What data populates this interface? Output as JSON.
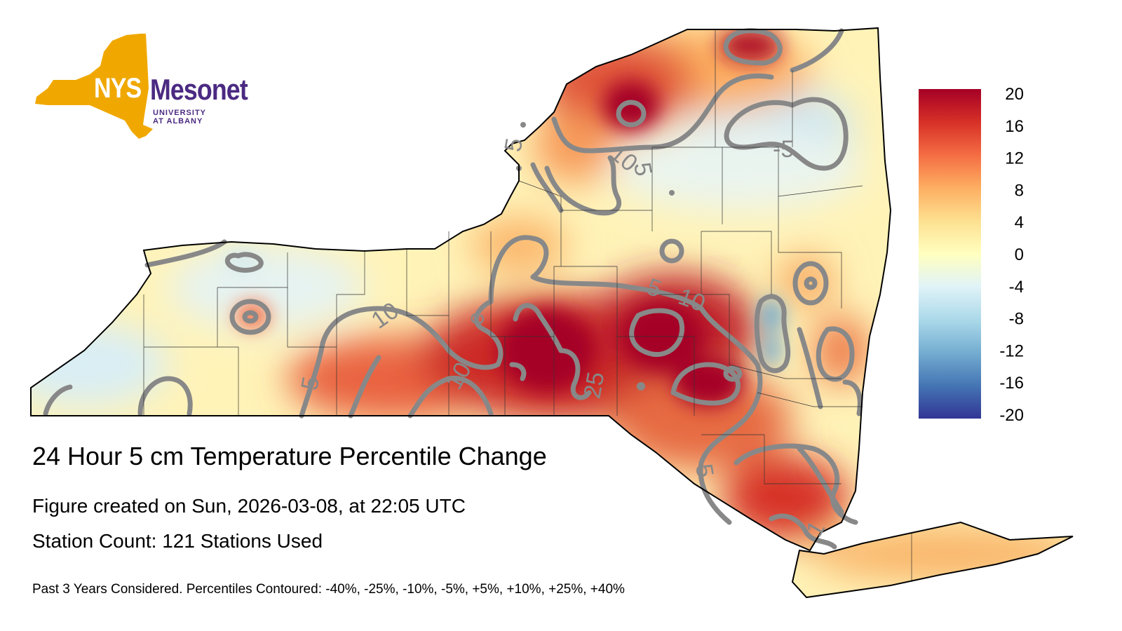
{
  "logo": {
    "nys": "NYS",
    "mesonet": "Mesonet",
    "university": "UNIVERSITY AT ALBANY"
  },
  "title": "24 Hour 5 cm Temperature Percentile Change",
  "created": "Figure created on Sun, 2026-03-08, at 22:05 UTC",
  "stations": "Station Count: 121 Stations Used",
  "note": "Past 3 Years Considered. Percentiles Contoured: -40%, -25%, -10%, -5%, +5%, +10%, +25%, +40%",
  "colorbar": {
    "ticks": [
      "20",
      "16",
      "12",
      "8",
      "4",
      "0",
      "-4",
      "-8",
      "-12",
      "-16",
      "-20"
    ],
    "colors": [
      "#a50026",
      "#d73027",
      "#f46d43",
      "#fdae61",
      "#fee090",
      "#ffffbf",
      "#e0f3f8",
      "#abd9e9",
      "#74add1",
      "#4575b4",
      "#313695"
    ]
  },
  "contour_labels": [
    "10",
    "5",
    "-5",
    "5",
    "10",
    "5",
    "10",
    "c",
    "10",
    "5",
    "25",
    "5",
    "1"
  ]
}
